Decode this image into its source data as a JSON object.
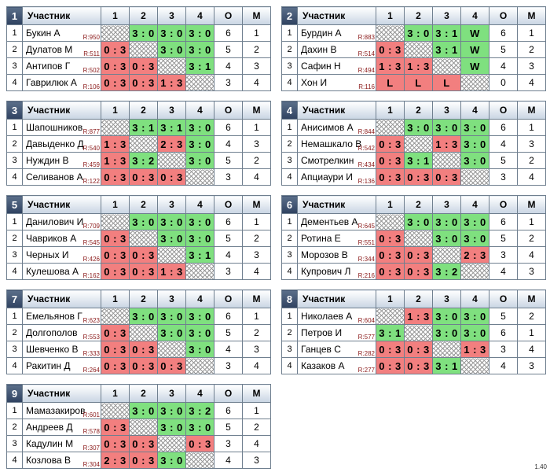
{
  "header": {
    "participant": "Участник",
    "cols": [
      "1",
      "2",
      "3",
      "4"
    ],
    "o": "О",
    "m": "М"
  },
  "groups": [
    {
      "num": "1",
      "rows": [
        {
          "n": "1",
          "name": "Букин А",
          "rating": "R:950",
          "scores": [
            "",
            "3 : 0",
            "3 : 0",
            "3 : 0"
          ],
          "o": "6",
          "m": "1"
        },
        {
          "n": "2",
          "name": "Дулатов М",
          "rating": "R:511",
          "scores": [
            "0 : 3",
            "",
            "3 : 0",
            "3 : 0"
          ],
          "o": "5",
          "m": "2"
        },
        {
          "n": "3",
          "name": "Антипов Г",
          "rating": "R:502",
          "scores": [
            "0 : 3",
            "0 : 3",
            "",
            "3 : 1"
          ],
          "o": "4",
          "m": "3"
        },
        {
          "n": "4",
          "name": "Гаврилюк А",
          "rating": "R:106",
          "scores": [
            "0 : 3",
            "0 : 3",
            "1 : 3",
            ""
          ],
          "o": "3",
          "m": "4"
        }
      ]
    },
    {
      "num": "2",
      "rows": [
        {
          "n": "1",
          "name": "Бурдин А",
          "rating": "R:883",
          "scores": [
            "",
            "3 : 0",
            "3 : 1",
            "W"
          ],
          "o": "6",
          "m": "1"
        },
        {
          "n": "2",
          "name": "Дахин В",
          "rating": "R:514",
          "scores": [
            "0 : 3",
            "",
            "3 : 1",
            "W"
          ],
          "o": "5",
          "m": "2"
        },
        {
          "n": "3",
          "name": "Сафин Н",
          "rating": "R:494",
          "scores": [
            "1 : 3",
            "1 : 3",
            "",
            "W"
          ],
          "o": "4",
          "m": "3"
        },
        {
          "n": "4",
          "name": "Хон И",
          "rating": "R:116",
          "scores": [
            "L",
            "L",
            "L",
            ""
          ],
          "o": "0",
          "m": "4"
        }
      ]
    },
    {
      "num": "3",
      "rows": [
        {
          "n": "1",
          "name": "Шапошников",
          "rating": "R:877",
          "scores": [
            "",
            "3 : 1",
            "3 : 1",
            "3 : 0"
          ],
          "o": "6",
          "m": "1"
        },
        {
          "n": "2",
          "name": "Давыденко Д",
          "rating": "R:540",
          "scores": [
            "1 : 3",
            "",
            "2 : 3",
            "3 : 0"
          ],
          "o": "4",
          "m": "3"
        },
        {
          "n": "3",
          "name": "Нуждин В",
          "rating": "R:459",
          "scores": [
            "1 : 3",
            "3 : 2",
            "",
            "3 : 0"
          ],
          "o": "5",
          "m": "2"
        },
        {
          "n": "4",
          "name": "Селиванов А",
          "rating": "R:122",
          "scores": [
            "0 : 3",
            "0 : 3",
            "0 : 3",
            ""
          ],
          "o": "3",
          "m": "4"
        }
      ]
    },
    {
      "num": "4",
      "rows": [
        {
          "n": "1",
          "name": "Анисимов А",
          "rating": "R:844",
          "scores": [
            "",
            "3 : 0",
            "3 : 0",
            "3 : 0"
          ],
          "o": "6",
          "m": "1"
        },
        {
          "n": "2",
          "name": "Немашкало В",
          "rating": "R:542",
          "scores": [
            "0 : 3",
            "",
            "1 : 3",
            "3 : 0"
          ],
          "o": "4",
          "m": "3"
        },
        {
          "n": "3",
          "name": "Смотрелкин",
          "rating": "R:434",
          "scores": [
            "0 : 3",
            "3 : 1",
            "",
            "3 : 0"
          ],
          "o": "5",
          "m": "2"
        },
        {
          "n": "4",
          "name": "Апциаури И",
          "rating": "R:136",
          "scores": [
            "0 : 3",
            "0 : 3",
            "0 : 3",
            ""
          ],
          "o": "3",
          "m": "4"
        }
      ]
    },
    {
      "num": "5",
      "rows": [
        {
          "n": "1",
          "name": "Данилович И",
          "rating": "R:709",
          "scores": [
            "",
            "3 : 0",
            "3 : 0",
            "3 : 0"
          ],
          "o": "6",
          "m": "1"
        },
        {
          "n": "2",
          "name": "Чавриков А",
          "rating": "R:545",
          "scores": [
            "0 : 3",
            "",
            "3 : 0",
            "3 : 0"
          ],
          "o": "5",
          "m": "2"
        },
        {
          "n": "3",
          "name": "Черных И",
          "rating": "R:426",
          "scores": [
            "0 : 3",
            "0 : 3",
            "",
            "3 : 1"
          ],
          "o": "4",
          "m": "3"
        },
        {
          "n": "4",
          "name": "Кулешова А",
          "rating": "R:162",
          "scores": [
            "0 : 3",
            "0 : 3",
            "1 : 3",
            ""
          ],
          "o": "3",
          "m": "4"
        }
      ]
    },
    {
      "num": "6",
      "rows": [
        {
          "n": "1",
          "name": "Дементьев А",
          "rating": "R:645",
          "scores": [
            "",
            "3 : 0",
            "3 : 0",
            "3 : 0"
          ],
          "o": "6",
          "m": "1"
        },
        {
          "n": "2",
          "name": "Ротина Е",
          "rating": "R:551",
          "scores": [
            "0 : 3",
            "",
            "3 : 0",
            "3 : 0"
          ],
          "o": "5",
          "m": "2"
        },
        {
          "n": "3",
          "name": "Морозов В",
          "rating": "R:344",
          "scores": [
            "0 : 3",
            "0 : 3",
            "",
            "2 : 3"
          ],
          "o": "3",
          "m": "4"
        },
        {
          "n": "4",
          "name": "Купрович Л",
          "rating": "R:216",
          "scores": [
            "0 : 3",
            "0 : 3",
            "3 : 2",
            ""
          ],
          "o": "4",
          "m": "3"
        }
      ]
    },
    {
      "num": "7",
      "rows": [
        {
          "n": "1",
          "name": "Емельянов Г",
          "rating": "R:623",
          "scores": [
            "",
            "3 : 0",
            "3 : 0",
            "3 : 0"
          ],
          "o": "6",
          "m": "1"
        },
        {
          "n": "2",
          "name": "Долгополов",
          "rating": "R:553",
          "scores": [
            "0 : 3",
            "",
            "3 : 0",
            "3 : 0"
          ],
          "o": "5",
          "m": "2"
        },
        {
          "n": "3",
          "name": "Шевченко В",
          "rating": "R:333",
          "scores": [
            "0 : 3",
            "0 : 3",
            "",
            "3 : 0"
          ],
          "o": "4",
          "m": "3"
        },
        {
          "n": "4",
          "name": "Ракитин Д",
          "rating": "R:264",
          "scores": [
            "0 : 3",
            "0 : 3",
            "0 : 3",
            ""
          ],
          "o": "3",
          "m": "4"
        }
      ]
    },
    {
      "num": "8",
      "rows": [
        {
          "n": "1",
          "name": "Николаев А",
          "rating": "R:604",
          "scores": [
            "",
            "1 : 3",
            "3 : 0",
            "3 : 0"
          ],
          "o": "5",
          "m": "2"
        },
        {
          "n": "2",
          "name": "Петров И",
          "rating": "R:577",
          "scores": [
            "3 : 1",
            "",
            "3 : 0",
            "3 : 0"
          ],
          "o": "6",
          "m": "1"
        },
        {
          "n": "3",
          "name": "Ганцев С",
          "rating": "R:282",
          "scores": [
            "0 : 3",
            "0 : 3",
            "",
            "1 : 3"
          ],
          "o": "3",
          "m": "4"
        },
        {
          "n": "4",
          "name": "Казаков А",
          "rating": "R:277",
          "scores": [
            "0 : 3",
            "0 : 3",
            "3 : 1",
            ""
          ],
          "o": "4",
          "m": "3"
        }
      ]
    },
    {
      "num": "9",
      "rows": [
        {
          "n": "1",
          "name": "Мамазакиров",
          "rating": "R:601",
          "scores": [
            "",
            "3 : 0",
            "3 : 0",
            "3 : 2"
          ],
          "o": "6",
          "m": "1"
        },
        {
          "n": "2",
          "name": "Андреев Д",
          "rating": "R:578",
          "scores": [
            "0 : 3",
            "",
            "3 : 0",
            "3 : 0"
          ],
          "o": "5",
          "m": "2"
        },
        {
          "n": "3",
          "name": "Кадулин М",
          "rating": "R:307",
          "scores": [
            "0 : 3",
            "0 : 3",
            "",
            "0 : 3"
          ],
          "o": "3",
          "m": "4"
        },
        {
          "n": "4",
          "name": "Козлова В",
          "rating": "R:304",
          "scores": [
            "2 : 3",
            "0 : 3",
            "3 : 0",
            ""
          ],
          "o": "4",
          "m": "3"
        }
      ]
    }
  ],
  "colors": {
    "win": "#7fe07f",
    "loss": "#f27f7f",
    "header_num_bg": "#2f4260"
  },
  "version": "1.40"
}
